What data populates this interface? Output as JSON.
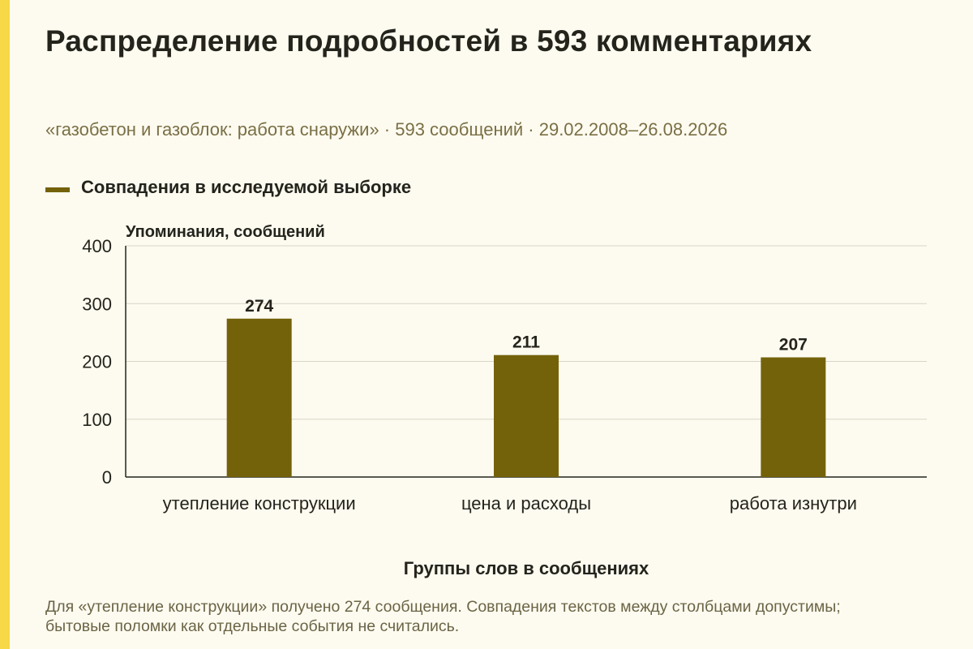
{
  "title": "Распределение подробностей в 593 комментариях",
  "subtitle": "«газобетон и газоблок: работа снаружи» · 593 сообщений · 29.02.2008–26.08.2026",
  "note": "Для «утепление конструкции» получено 274 сообщения. Совпадения текстов между столбцами допустимы; бытовые поломки как отдельные события не считались.",
  "colors": {
    "bar": "#74620b",
    "accent_stripe": "#f7d846",
    "background": "#fdfbf0"
  },
  "chart_data": {
    "type": "bar",
    "categories": [
      "утепление конструкции",
      "цена и расходы",
      "работа изнутри"
    ],
    "series": [
      {
        "name": "Совпадения в исследуемой выборке",
        "values": [
          274,
          211,
          207
        ]
      }
    ],
    "ylabel": "Упоминания, сообщений",
    "xlabel": "Группы слов в сообщениях",
    "ylim": [
      0,
      400
    ],
    "yticks": [
      0,
      100,
      200,
      300,
      400
    ],
    "grid": true,
    "legend_position": "top-left",
    "data_labels": true
  }
}
